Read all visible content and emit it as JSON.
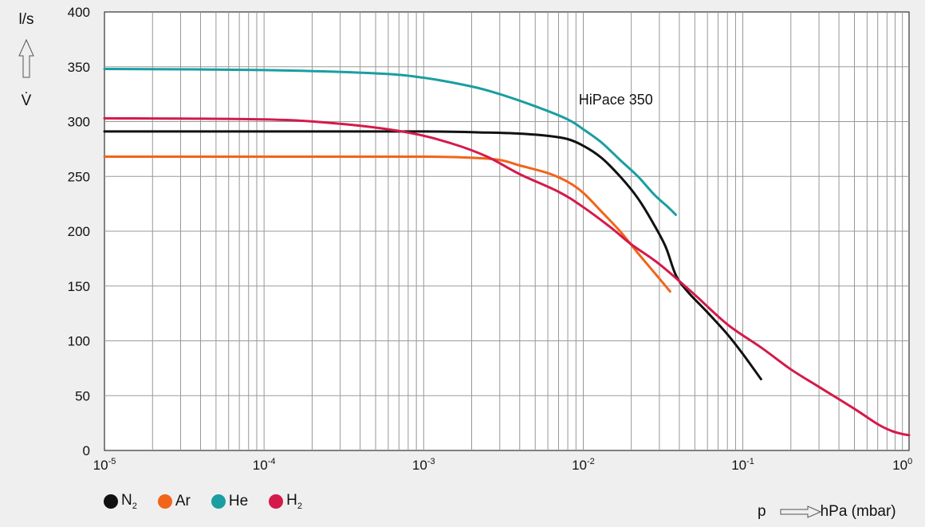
{
  "chart_data": {
    "type": "line",
    "x_scale": "log",
    "xlim": [
      1e-05,
      1.1
    ],
    "ylim": [
      0,
      400
    ],
    "x_ticks": [
      {
        "value": 1e-05,
        "base": "10",
        "exp": "-5"
      },
      {
        "value": 0.0001,
        "base": "10",
        "exp": "-4"
      },
      {
        "value": 0.001,
        "base": "10",
        "exp": "-3"
      },
      {
        "value": 0.01,
        "base": "10",
        "exp": "-2"
      },
      {
        "value": 0.1,
        "base": "10",
        "exp": "-1"
      },
      {
        "value": 1,
        "base": "10",
        "exp": "0"
      }
    ],
    "y_ticks": [
      "0",
      "50",
      "100",
      "150",
      "200",
      "250",
      "300",
      "350",
      "400"
    ],
    "grid": true,
    "ylabel_unit": "l/s",
    "ylabel_symbol": "V̇",
    "xlabel_symbol": "p",
    "xlabel_unit": "hPa (mbar)",
    "annotation": {
      "text": "HiPace 350",
      "x": 0.016,
      "y": 320
    },
    "legend_position": "bottom-left",
    "series": [
      {
        "name": "N",
        "sub": "2",
        "color": "#111111",
        "x": [
          1e-05,
          0.0001,
          0.001,
          0.0025,
          0.004,
          0.006,
          0.008,
          0.01,
          0.013,
          0.017,
          0.022,
          0.028,
          0.033,
          0.038,
          0.045,
          0.06,
          0.08,
          0.1,
          0.13
        ],
        "y": [
          291,
          291,
          291,
          290,
          289,
          287,
          284,
          278,
          267,
          250,
          230,
          205,
          185,
          160,
          145,
          126,
          106,
          88,
          65
        ]
      },
      {
        "name": "Ar",
        "sub": "",
        "color": "#f26419",
        "x": [
          1e-05,
          0.0001,
          0.001,
          0.002,
          0.003,
          0.004,
          0.006,
          0.008,
          0.01,
          0.013,
          0.017,
          0.022,
          0.028,
          0.035
        ],
        "y": [
          268,
          268,
          268,
          267,
          265,
          260,
          253,
          245,
          235,
          218,
          200,
          180,
          162,
          145
        ]
      },
      {
        "name": "He",
        "sub": "",
        "color": "#1a9ea1",
        "x": [
          1e-05,
          0.0001,
          0.0005,
          0.001,
          0.002,
          0.003,
          0.005,
          0.008,
          0.01,
          0.013,
          0.017,
          0.022,
          0.028,
          0.034,
          0.038
        ],
        "y": [
          348,
          347,
          344,
          340,
          332,
          325,
          314,
          302,
          293,
          281,
          265,
          250,
          233,
          222,
          215
        ]
      },
      {
        "name": "H",
        "sub": "2",
        "color": "#d41a4a",
        "x": [
          1e-05,
          0.0001,
          0.0003,
          0.0008,
          0.0015,
          0.0025,
          0.004,
          0.007,
          0.01,
          0.015,
          0.02,
          0.03,
          0.05,
          0.08,
          0.13,
          0.2,
          0.3,
          0.5,
          0.7,
          0.85,
          1.0,
          1.1
        ],
        "y": [
          303,
          302,
          298,
          290,
          280,
          268,
          252,
          236,
          222,
          203,
          188,
          170,
          142,
          115,
          94,
          74,
          58,
          38,
          24,
          18,
          15,
          14
        ]
      }
    ]
  }
}
